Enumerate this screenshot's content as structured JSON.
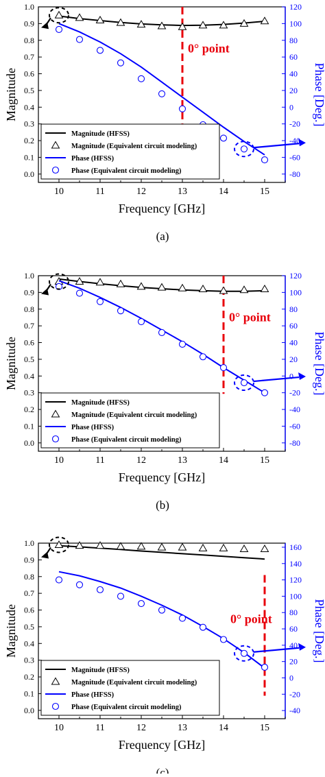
{
  "figure": {
    "panels": [
      {
        "caption": "(a)",
        "chart_data": {
          "type": "line",
          "xlabel": "Frequency [GHz]",
          "ylabel": "Magnitude",
          "y2label": "Phase [Deg.]",
          "xlim": [
            9.5,
            15.5
          ],
          "xticks": [
            10,
            11,
            12,
            13,
            14,
            15
          ],
          "xtick_labels": [
            "10",
            "11",
            "12",
            "13",
            "14",
            "15"
          ],
          "ylim": [
            -0.05,
            1.0
          ],
          "yticks": [
            0.0,
            0.1,
            0.2,
            0.3,
            0.4,
            0.5,
            0.6,
            0.7,
            0.8,
            0.9,
            1.0
          ],
          "ytick_labels": [
            "0.0",
            "0.1",
            "0.2",
            "0.3",
            "0.4",
            "0.5",
            "0.6",
            "0.7",
            "0.8",
            "0.9",
            "1.0"
          ],
          "y2lim": [
            -90,
            120
          ],
          "y2ticks": [
            -80,
            -60,
            -40,
            -20,
            0,
            20,
            40,
            60,
            80,
            100,
            120
          ],
          "y2tick_labels": [
            "-80",
            "-60",
            "-40",
            "-20",
            "0",
            "20",
            "40",
            "60",
            "80",
            "100",
            "120"
          ],
          "annotation": "0° point",
          "zero_point_x": 13,
          "legend_position": "bottom-left",
          "series": [
            {
              "name": "Magnitude (HFSS)",
              "axis": "left",
              "style": "line",
              "color": "#000000",
              "x": [
                10,
                10.5,
                11,
                11.5,
                12,
                12.5,
                13,
                13.5,
                14,
                14.5,
                15
              ],
              "y": [
                0.945,
                0.93,
                0.918,
                0.907,
                0.898,
                0.892,
                0.889,
                0.89,
                0.895,
                0.903,
                0.914
              ]
            },
            {
              "name": "Magnitude (Equivalent circuit modeling)",
              "axis": "left",
              "style": "triangle",
              "color": "#000000",
              "x": [
                10,
                10.5,
                11,
                11.5,
                12,
                12.5,
                13,
                13.5,
                14,
                14.5,
                15
              ],
              "y": [
                0.95,
                0.935,
                0.92,
                0.905,
                0.895,
                0.885,
                0.88,
                0.89,
                0.89,
                0.9,
                0.915
              ]
            },
            {
              "name": "Phase (HFSS)",
              "axis": "right",
              "style": "line",
              "color": "#0000ff",
              "x": [
                10,
                10.5,
                11,
                11.5,
                12,
                12.5,
                13,
                13.5,
                14,
                14.5,
                15
              ],
              "y": [
                100,
                90,
                78,
                64,
                48,
                30,
                12,
                -6,
                -24,
                -41,
                -57
              ]
            },
            {
              "name": "Phase (Equivalent circuit modeling)",
              "axis": "right",
              "style": "circle",
              "color": "#0000ff",
              "x": [
                10,
                10.5,
                11,
                11.5,
                12,
                12.5,
                13,
                13.5,
                14,
                14.5,
                15
              ],
              "y": [
                93,
                81,
                68,
                53,
                34,
                16,
                -2,
                -21,
                -37,
                -50,
                -63
              ]
            }
          ]
        }
      },
      {
        "caption": "(b)",
        "chart_data": {
          "type": "line",
          "xlabel": "Frequency [GHz]",
          "ylabel": "Magnitude",
          "y2label": "Phase [Deg.]",
          "xlim": [
            9.5,
            15.5
          ],
          "xticks": [
            10,
            11,
            12,
            13,
            14,
            15
          ],
          "xtick_labels": [
            "10",
            "11",
            "12",
            "13",
            "14",
            "15"
          ],
          "ylim": [
            -0.05,
            1.0
          ],
          "yticks": [
            0.0,
            0.1,
            0.2,
            0.3,
            0.4,
            0.5,
            0.6,
            0.7,
            0.8,
            0.9,
            1.0
          ],
          "ytick_labels": [
            "0.0",
            "0.1",
            "0.2",
            "0.3",
            "0.4",
            "0.5",
            "0.6",
            "0.7",
            "0.8",
            "0.9",
            "1.0"
          ],
          "y2lim": [
            -90,
            120
          ],
          "y2ticks": [
            -80,
            -60,
            -40,
            -20,
            0,
            20,
            40,
            60,
            80,
            100,
            120
          ],
          "y2tick_labels": [
            "-80",
            "-60",
            "-40",
            "-20",
            "0",
            "20",
            "40",
            "60",
            "80",
            "100",
            "120"
          ],
          "annotation": "0° point",
          "zero_point_x": 14,
          "legend_position": "bottom-left",
          "series": [
            {
              "name": "Magnitude (HFSS)",
              "axis": "left",
              "style": "line",
              "color": "#000000",
              "x": [
                10,
                10.5,
                11,
                11.5,
                12,
                12.5,
                13,
                13.5,
                14,
                14.5,
                15
              ],
              "y": [
                0.98,
                0.965,
                0.952,
                0.94,
                0.93,
                0.922,
                0.915,
                0.91,
                0.907,
                0.907,
                0.91
              ]
            },
            {
              "name": "Magnitude (Equivalent circuit modeling)",
              "axis": "left",
              "style": "triangle",
              "color": "#000000",
              "x": [
                10,
                10.5,
                11,
                11.5,
                12,
                12.5,
                13,
                13.5,
                14,
                14.5,
                15
              ],
              "y": [
                0.965,
                0.965,
                0.96,
                0.95,
                0.935,
                0.93,
                0.925,
                0.92,
                0.91,
                0.915,
                0.92
              ]
            },
            {
              "name": "Phase (HFSS)",
              "axis": "right",
              "style": "line",
              "color": "#0000ff",
              "x": [
                10,
                10.5,
                11,
                11.5,
                12,
                12.5,
                13,
                13.5,
                14,
                14.5,
                15
              ],
              "y": [
                114,
                105,
                94,
                82,
                69,
                55,
                41,
                26,
                10,
                -5,
                -20
              ]
            },
            {
              "name": "Phase (Equivalent circuit modeling)",
              "axis": "right",
              "style": "circle",
              "color": "#0000ff",
              "x": [
                10,
                10.5,
                11,
                11.5,
                12,
                12.5,
                13,
                13.5,
                14,
                14.5,
                15
              ],
              "y": [
                107,
                99,
                89,
                78,
                65,
                52,
                38,
                23,
                10,
                -8,
                -20
              ]
            }
          ]
        }
      },
      {
        "caption": "(c)",
        "chart_data": {
          "type": "line",
          "xlabel": "Frequency [GHz]",
          "ylabel": "Magnitude",
          "y2label": "Phase [Deg.]",
          "xlim": [
            9.5,
            15.5
          ],
          "xticks": [
            10,
            11,
            12,
            13,
            14,
            15
          ],
          "xtick_labels": [
            "10",
            "11",
            "12",
            "13",
            "14",
            "15"
          ],
          "ylim": [
            -0.05,
            1.0
          ],
          "yticks": [
            0.0,
            0.1,
            0.2,
            0.3,
            0.4,
            0.5,
            0.6,
            0.7,
            0.8,
            0.9,
            1.0
          ],
          "ytick_labels": [
            "0.0",
            "0.1",
            "0.2",
            "0.3",
            "0.4",
            "0.5",
            "0.6",
            "0.7",
            "0.8",
            "0.9",
            "1.0"
          ],
          "y2lim": [
            -50,
            165
          ],
          "y2ticks": [
            -40,
            -20,
            0,
            20,
            40,
            60,
            80,
            100,
            120,
            140,
            160
          ],
          "y2tick_labels": [
            "-40",
            "-20",
            "0",
            "20",
            "40",
            "60",
            "80",
            "100",
            "120",
            "140",
            "160"
          ],
          "annotation": "0° point",
          "zero_point_x": 15,
          "legend_position": "bottom-left",
          "series": [
            {
              "name": "Magnitude (HFSS)",
              "axis": "left",
              "style": "line",
              "color": "#000000",
              "x": [
                10,
                10.5,
                11,
                11.5,
                12,
                12.5,
                13,
                13.5,
                14,
                14.5,
                15
              ],
              "y": [
                0.985,
                0.978,
                0.97,
                0.962,
                0.953,
                0.945,
                0.937,
                0.929,
                0.921,
                0.913,
                0.905
              ]
            },
            {
              "name": "Magnitude (Equivalent circuit modeling)",
              "axis": "left",
              "style": "triangle",
              "color": "#000000",
              "x": [
                10,
                10.5,
                11,
                11.5,
                12,
                12.5,
                13,
                13.5,
                14,
                14.5,
                15
              ],
              "y": [
                0.99,
                0.985,
                0.985,
                0.98,
                0.98,
                0.975,
                0.975,
                0.97,
                0.97,
                0.965,
                0.965
              ]
            },
            {
              "name": "Phase (HFSS)",
              "axis": "right",
              "style": "line",
              "color": "#0000ff",
              "x": [
                10,
                10.5,
                11,
                11.5,
                12,
                12.5,
                13,
                13.5,
                14,
                14.5,
                15
              ],
              "y": [
                130,
                125,
                118,
                110,
                100,
                89,
                77,
                63,
                48,
                31,
                12
              ]
            },
            {
              "name": "Phase (Equivalent circuit modeling)",
              "axis": "right",
              "style": "circle",
              "color": "#0000ff",
              "x": [
                10,
                10.5,
                11,
                11.5,
                12,
                12.5,
                13,
                13.5,
                14,
                14.5,
                15
              ],
              "y": [
                120,
                114,
                108,
                100,
                91,
                83,
                73,
                62,
                47,
                30,
                13
              ]
            }
          ]
        }
      }
    ]
  }
}
